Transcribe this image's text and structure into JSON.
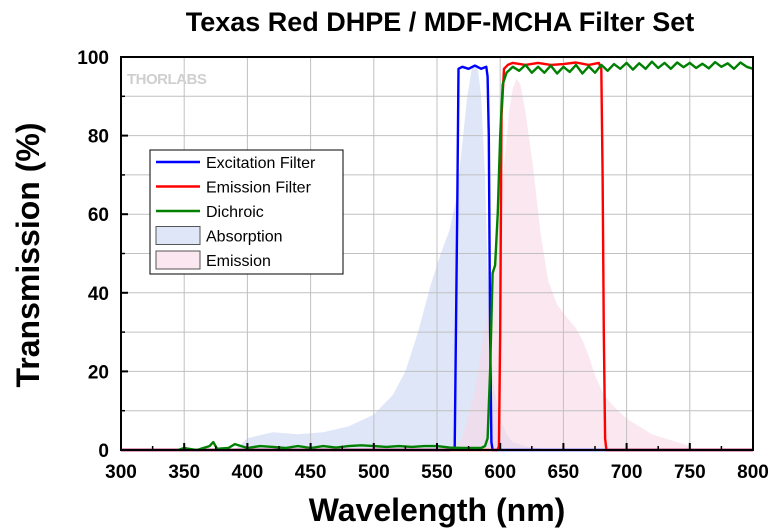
{
  "chart_data": {
    "type": "area",
    "title": "Texas Red DHPE / MDF-MCHA Filter Set",
    "xlabel": "Wavelength (nm)",
    "ylabel": "Transmission (%)",
    "xlim": [
      300,
      800
    ],
    "ylim": [
      0,
      100
    ],
    "x_ticks": [
      300,
      350,
      400,
      450,
      500,
      550,
      600,
      650,
      700,
      750,
      800
    ],
    "y_ticks": [
      0,
      20,
      40,
      60,
      80,
      100
    ],
    "grid": true,
    "legend_position": "left-middle",
    "watermark": "THORLABS",
    "series": [
      {
        "name": "Excitation Filter",
        "kind": "line",
        "color": "#0000ff",
        "points": [
          [
            300,
            0
          ],
          [
            560,
            0
          ],
          [
            564,
            0.5
          ],
          [
            566,
            60
          ],
          [
            567,
            97
          ],
          [
            570,
            97.5
          ],
          [
            575,
            97
          ],
          [
            580,
            97.8
          ],
          [
            585,
            97
          ],
          [
            589,
            97.5
          ],
          [
            590,
            95
          ],
          [
            591,
            80
          ],
          [
            592,
            30
          ],
          [
            593,
            2
          ],
          [
            594,
            0
          ],
          [
            800,
            0
          ]
        ]
      },
      {
        "name": "Emission Filter",
        "kind": "line",
        "color": "#ff0000",
        "points": [
          [
            300,
            0
          ],
          [
            598,
            0
          ],
          [
            599,
            1
          ],
          [
            600,
            30
          ],
          [
            601,
            85
          ],
          [
            603,
            97
          ],
          [
            606,
            98
          ],
          [
            610,
            98.5
          ],
          [
            620,
            98
          ],
          [
            630,
            98.5
          ],
          [
            640,
            98
          ],
          [
            650,
            98.2
          ],
          [
            660,
            98.6
          ],
          [
            670,
            98
          ],
          [
            678,
            98.5
          ],
          [
            680,
            97
          ],
          [
            681,
            70
          ],
          [
            682,
            30
          ],
          [
            683,
            3
          ],
          [
            684,
            0
          ],
          [
            800,
            0
          ]
        ]
      },
      {
        "name": "Dichroic",
        "kind": "line",
        "color": "#008000",
        "points": [
          [
            345,
            0
          ],
          [
            350,
            0.5
          ],
          [
            360,
            0
          ],
          [
            370,
            1
          ],
          [
            373,
            2
          ],
          [
            376,
            0.3
          ],
          [
            385,
            0.5
          ],
          [
            390,
            1.5
          ],
          [
            400,
            0.5
          ],
          [
            410,
            1
          ],
          [
            420,
            0.8
          ],
          [
            430,
            0.5
          ],
          [
            440,
            1
          ],
          [
            450,
            0.5
          ],
          [
            460,
            1
          ],
          [
            470,
            0.6
          ],
          [
            480,
            1
          ],
          [
            490,
            1.2
          ],
          [
            500,
            1
          ],
          [
            510,
            0.8
          ],
          [
            520,
            1
          ],
          [
            530,
            0.8
          ],
          [
            540,
            1
          ],
          [
            550,
            1
          ],
          [
            560,
            0.6
          ],
          [
            570,
            0.5
          ],
          [
            580,
            0.5
          ],
          [
            585,
            0.5
          ],
          [
            588,
            1
          ],
          [
            590,
            3
          ],
          [
            592,
            20
          ],
          [
            594,
            45
          ],
          [
            596,
            47
          ],
          [
            598,
            60
          ],
          [
            600,
            80
          ],
          [
            602,
            93
          ],
          [
            605,
            96
          ],
          [
            610,
            97.5
          ],
          [
            615,
            96.5
          ],
          [
            620,
            98
          ],
          [
            625,
            96
          ],
          [
            630,
            97.5
          ],
          [
            635,
            96
          ],
          [
            640,
            97.8
          ],
          [
            645,
            95.8
          ],
          [
            650,
            97.5
          ],
          [
            655,
            96.2
          ],
          [
            660,
            98
          ],
          [
            665,
            95.8
          ],
          [
            670,
            97.6
          ],
          [
            675,
            96
          ],
          [
            680,
            98
          ],
          [
            685,
            96.5
          ],
          [
            690,
            98.2
          ],
          [
            695,
            97
          ],
          [
            700,
            98.5
          ],
          [
            705,
            96.8
          ],
          [
            710,
            98.4
          ],
          [
            715,
            97
          ],
          [
            720,
            98.8
          ],
          [
            725,
            97.2
          ],
          [
            730,
            98.5
          ],
          [
            735,
            97
          ],
          [
            740,
            98.6
          ],
          [
            745,
            97.4
          ],
          [
            750,
            98.5
          ],
          [
            755,
            97.2
          ],
          [
            760,
            98.3
          ],
          [
            765,
            97.1
          ],
          [
            770,
            98.7
          ],
          [
            775,
            97.5
          ],
          [
            780,
            98.4
          ],
          [
            785,
            97
          ],
          [
            790,
            98.6
          ],
          [
            795,
            97.5
          ],
          [
            800,
            97
          ]
        ]
      },
      {
        "name": "Absorption",
        "kind": "area",
        "color": "#c8d6f4",
        "points": [
          [
            390,
            0
          ],
          [
            400,
            3
          ],
          [
            420,
            4.5
          ],
          [
            440,
            4
          ],
          [
            460,
            4.5
          ],
          [
            480,
            6
          ],
          [
            500,
            9
          ],
          [
            515,
            14
          ],
          [
            525,
            20
          ],
          [
            535,
            30
          ],
          [
            545,
            42
          ],
          [
            553,
            50
          ],
          [
            560,
            56
          ],
          [
            566,
            65
          ],
          [
            570,
            78
          ],
          [
            574,
            90
          ],
          [
            578,
            98
          ],
          [
            582,
            98
          ],
          [
            585,
            90
          ],
          [
            588,
            70
          ],
          [
            590,
            45
          ],
          [
            592,
            30
          ],
          [
            595,
            16
          ],
          [
            600,
            8
          ],
          [
            605,
            4
          ],
          [
            610,
            2
          ],
          [
            620,
            1
          ],
          [
            630,
            0.5
          ],
          [
            640,
            0
          ]
        ]
      },
      {
        "name": "Emission",
        "kind": "area",
        "color": "#f9d7e4",
        "points": [
          [
            564,
            0
          ],
          [
            570,
            3
          ],
          [
            580,
            15
          ],
          [
            590,
            35
          ],
          [
            598,
            55
          ],
          [
            603,
            72
          ],
          [
            607,
            86
          ],
          [
            610,
            92
          ],
          [
            613,
            94.5
          ],
          [
            616,
            93
          ],
          [
            620,
            86
          ],
          [
            626,
            72
          ],
          [
            632,
            55
          ],
          [
            638,
            43
          ],
          [
            645,
            37
          ],
          [
            652,
            34
          ],
          [
            660,
            31
          ],
          [
            665,
            28
          ],
          [
            670,
            24
          ],
          [
            675,
            19
          ],
          [
            682,
            14
          ],
          [
            690,
            11
          ],
          [
            700,
            8
          ],
          [
            710,
            6
          ],
          [
            720,
            4
          ],
          [
            730,
            3
          ],
          [
            740,
            2
          ],
          [
            750,
            1
          ],
          [
            752,
            0
          ]
        ]
      }
    ]
  }
}
